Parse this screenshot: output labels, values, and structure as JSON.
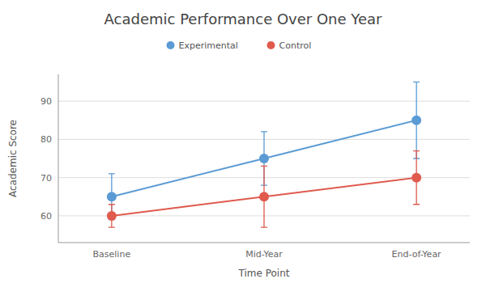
{
  "chart_data": {
    "type": "line",
    "title": "Academic Performance Over One Year",
    "xlabel": "Time Point",
    "ylabel": "Academic Score",
    "categories": [
      "Baseline",
      "Mid-Year",
      "End-of-Year"
    ],
    "series": [
      {
        "name": "Experimental",
        "color": "#5b9bd5",
        "values": [
          65,
          75,
          85
        ],
        "yerr": [
          6,
          7,
          10
        ],
        "marker": "circle"
      },
      {
        "name": "Control",
        "color": "#e05a4e",
        "values": [
          60,
          65,
          70
        ],
        "yerr": [
          3,
          8,
          7
        ],
        "marker": "circle"
      }
    ],
    "ylim": [
      53,
      97
    ],
    "yticks": [
      60,
      70,
      80,
      90
    ],
    "grid": true,
    "legend": "top"
  }
}
